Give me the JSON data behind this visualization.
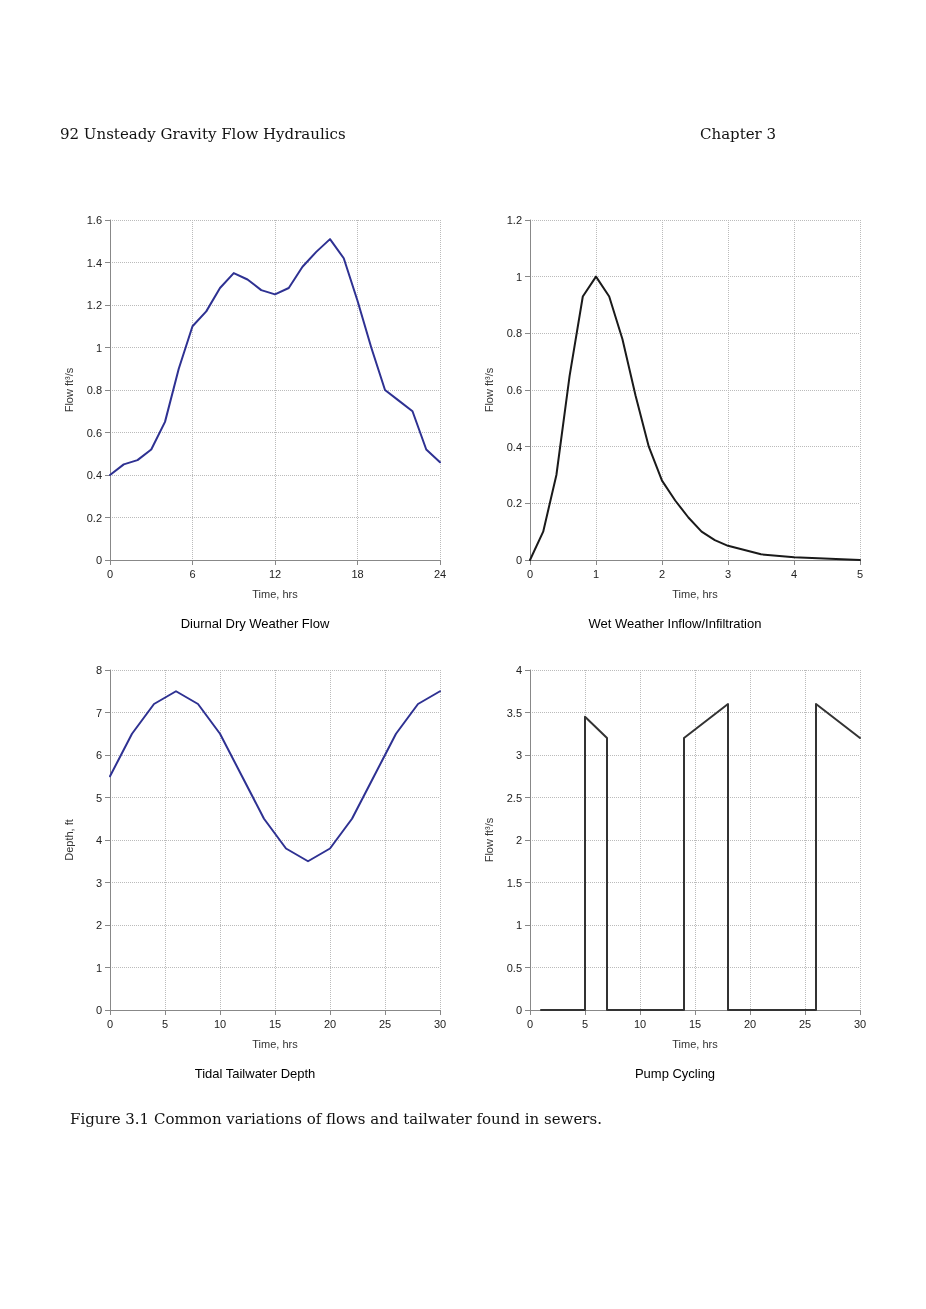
{
  "chart_data": [
    {
      "type": "line",
      "title": "Diurnal Dry Weather Flow",
      "xlabel": "Time, hrs",
      "ylabel": "Flow ft³/s",
      "annotations": [
        "92     Unsteady Gravity Flow Hydraulics",
        "Chapter 3"
      ],
      "xlim": [
        0,
        24
      ],
      "xticks": [
        0,
        6,
        12,
        18,
        24
      ],
      "ylim": [
        0,
        1.6
      ],
      "yticks": [
        0,
        0.2,
        0.4,
        0.6,
        0.8,
        1,
        1.2,
        1.4,
        1.6
      ],
      "grid": true,
      "marker": "none",
      "line_style": "solid",
      "x": [
        0,
        1,
        2,
        3,
        4,
        5,
        6,
        7,
        8,
        9,
        10,
        11,
        12,
        13,
        14,
        15,
        16,
        17,
        18,
        19,
        20,
        21,
        22,
        23,
        24
      ],
      "series": [
        {
          "color": "#2e3192",
          "values": [
            0.4,
            0.45,
            0.47,
            0.52,
            0.65,
            0.9,
            1.1,
            1.17,
            1.28,
            1.35,
            1.32,
            1.27,
            1.25,
            1.28,
            1.38,
            1.45,
            1.51,
            1.42,
            1.22,
            1.0,
            0.8,
            0.75,
            0.7,
            0.52,
            0.46
          ]
        }
      ]
    },
    {
      "type": "line",
      "title": "Wet Weather Inflow/Infiltration",
      "xlabel": "Time, hrs",
      "ylabel": "Flow ft³/s",
      "xlim": [
        0,
        5
      ],
      "xticks": [
        0,
        1,
        2,
        3,
        4,
        5
      ],
      "ylim": [
        0,
        1.2
      ],
      "yticks": [
        0,
        0.2,
        0.4,
        0.6,
        0.8,
        1,
        1.2
      ],
      "grid": true,
      "marker": "none",
      "line_style": "solid",
      "x": [
        0,
        0.2,
        0.4,
        0.6,
        0.8,
        1,
        1.2,
        1.4,
        1.6,
        1.8,
        2,
        2.2,
        2.4,
        2.6,
        2.8,
        3,
        3.5,
        4,
        5
      ],
      "series": [
        {
          "color": "#1a1a1a",
          "values": [
            0,
            0.1,
            0.3,
            0.65,
            0.93,
            1.0,
            0.93,
            0.78,
            0.58,
            0.4,
            0.28,
            0.21,
            0.15,
            0.1,
            0.07,
            0.05,
            0.02,
            0.01,
            0
          ]
        }
      ]
    },
    {
      "type": "line",
      "title": "Tidal Tailwater Depth",
      "xlabel": "Time, hrs",
      "ylabel": "Depth, ft",
      "xlim": [
        0,
        30
      ],
      "xticks": [
        0,
        5,
        10,
        15,
        20,
        25,
        30
      ],
      "ylim": [
        0,
        8
      ],
      "yticks": [
        0,
        1,
        2,
        3,
        4,
        5,
        6,
        7,
        8
      ],
      "grid": true,
      "marker": "none",
      "line_style": "solid",
      "x": [
        0,
        2,
        4,
        6,
        8,
        10,
        12,
        14,
        16,
        18,
        20,
        22,
        24,
        26,
        28,
        30
      ],
      "series": [
        {
          "color": "#2e3192",
          "values": [
            5.5,
            6.5,
            7.2,
            7.5,
            7.2,
            6.5,
            5.5,
            4.5,
            3.8,
            3.5,
            3.8,
            4.5,
            5.5,
            6.5,
            7.2,
            7.5
          ]
        }
      ]
    },
    {
      "type": "line",
      "title": "Pump Cycling",
      "xlabel": "Time, hrs",
      "ylabel": "Flow ft³/s",
      "annotations": [
        "Figure 3.1 Common variations of flows and tailwater found in sewers."
      ],
      "xlim": [
        0,
        30
      ],
      "xticks": [
        0,
        5,
        10,
        15,
        20,
        25,
        30
      ],
      "ylim": [
        0,
        4
      ],
      "yticks": [
        0,
        0.5,
        1,
        1.5,
        2,
        2.5,
        3,
        3.5,
        4
      ],
      "grid": true,
      "marker": "none",
      "line_style": "solid",
      "x": [
        1,
        5,
        5,
        7,
        7,
        14,
        14,
        18,
        18,
        26,
        26,
        30
      ],
      "series": [
        {
          "color": "#333333",
          "values": [
            0,
            0,
            3.45,
            3.2,
            0,
            0,
            3.2,
            3.6,
            0,
            0,
            3.6,
            3.2
          ]
        }
      ]
    }
  ]
}
